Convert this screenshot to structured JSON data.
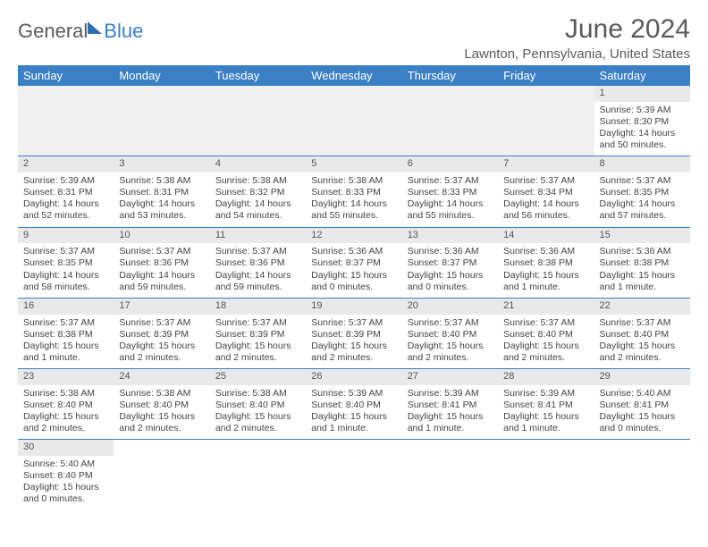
{
  "brand": {
    "part1": "General",
    "part2": "Blue"
  },
  "title": "June 2024",
  "location": "Lawnton, Pennsylvania, United States",
  "colors": {
    "header_bg": "#3b7fc4",
    "header_text": "#ffffff",
    "daynum_bg": "#e9e9e9",
    "row_divider": "#3b7fc4",
    "text": "#444444",
    "title_text": "#5a5a5a"
  },
  "weekdays": [
    "Sunday",
    "Monday",
    "Tuesday",
    "Wednesday",
    "Thursday",
    "Friday",
    "Saturday"
  ],
  "weeks": [
    [
      null,
      null,
      null,
      null,
      null,
      null,
      {
        "d": "1",
        "sr": "5:39 AM",
        "ss": "8:30 PM",
        "dl": "14 hours and 50 minutes."
      }
    ],
    [
      {
        "d": "2",
        "sr": "5:39 AM",
        "ss": "8:31 PM",
        "dl": "14 hours and 52 minutes."
      },
      {
        "d": "3",
        "sr": "5:38 AM",
        "ss": "8:31 PM",
        "dl": "14 hours and 53 minutes."
      },
      {
        "d": "4",
        "sr": "5:38 AM",
        "ss": "8:32 PM",
        "dl": "14 hours and 54 minutes."
      },
      {
        "d": "5",
        "sr": "5:38 AM",
        "ss": "8:33 PM",
        "dl": "14 hours and 55 minutes."
      },
      {
        "d": "6",
        "sr": "5:37 AM",
        "ss": "8:33 PM",
        "dl": "14 hours and 55 minutes."
      },
      {
        "d": "7",
        "sr": "5:37 AM",
        "ss": "8:34 PM",
        "dl": "14 hours and 56 minutes."
      },
      {
        "d": "8",
        "sr": "5:37 AM",
        "ss": "8:35 PM",
        "dl": "14 hours and 57 minutes."
      }
    ],
    [
      {
        "d": "9",
        "sr": "5:37 AM",
        "ss": "8:35 PM",
        "dl": "14 hours and 58 minutes."
      },
      {
        "d": "10",
        "sr": "5:37 AM",
        "ss": "8:36 PM",
        "dl": "14 hours and 59 minutes."
      },
      {
        "d": "11",
        "sr": "5:37 AM",
        "ss": "8:36 PM",
        "dl": "14 hours and 59 minutes."
      },
      {
        "d": "12",
        "sr": "5:36 AM",
        "ss": "8:37 PM",
        "dl": "15 hours and 0 minutes."
      },
      {
        "d": "13",
        "sr": "5:36 AM",
        "ss": "8:37 PM",
        "dl": "15 hours and 0 minutes."
      },
      {
        "d": "14",
        "sr": "5:36 AM",
        "ss": "8:38 PM",
        "dl": "15 hours and 1 minute."
      },
      {
        "d": "15",
        "sr": "5:36 AM",
        "ss": "8:38 PM",
        "dl": "15 hours and 1 minute."
      }
    ],
    [
      {
        "d": "16",
        "sr": "5:37 AM",
        "ss": "8:38 PM",
        "dl": "15 hours and 1 minute."
      },
      {
        "d": "17",
        "sr": "5:37 AM",
        "ss": "8:39 PM",
        "dl": "15 hours and 2 minutes."
      },
      {
        "d": "18",
        "sr": "5:37 AM",
        "ss": "8:39 PM",
        "dl": "15 hours and 2 minutes."
      },
      {
        "d": "19",
        "sr": "5:37 AM",
        "ss": "8:39 PM",
        "dl": "15 hours and 2 minutes."
      },
      {
        "d": "20",
        "sr": "5:37 AM",
        "ss": "8:40 PM",
        "dl": "15 hours and 2 minutes."
      },
      {
        "d": "21",
        "sr": "5:37 AM",
        "ss": "8:40 PM",
        "dl": "15 hours and 2 minutes."
      },
      {
        "d": "22",
        "sr": "5:37 AM",
        "ss": "8:40 PM",
        "dl": "15 hours and 2 minutes."
      }
    ],
    [
      {
        "d": "23",
        "sr": "5:38 AM",
        "ss": "8:40 PM",
        "dl": "15 hours and 2 minutes."
      },
      {
        "d": "24",
        "sr": "5:38 AM",
        "ss": "8:40 PM",
        "dl": "15 hours and 2 minutes."
      },
      {
        "d": "25",
        "sr": "5:38 AM",
        "ss": "8:40 PM",
        "dl": "15 hours and 2 minutes."
      },
      {
        "d": "26",
        "sr": "5:39 AM",
        "ss": "8:40 PM",
        "dl": "15 hours and 1 minute."
      },
      {
        "d": "27",
        "sr": "5:39 AM",
        "ss": "8:41 PM",
        "dl": "15 hours and 1 minute."
      },
      {
        "d": "28",
        "sr": "5:39 AM",
        "ss": "8:41 PM",
        "dl": "15 hours and 1 minute."
      },
      {
        "d": "29",
        "sr": "5:40 AM",
        "ss": "8:41 PM",
        "dl": "15 hours and 0 minutes."
      }
    ],
    [
      {
        "d": "30",
        "sr": "5:40 AM",
        "ss": "8:40 PM",
        "dl": "15 hours and 0 minutes."
      },
      null,
      null,
      null,
      null,
      null,
      null
    ]
  ],
  "labels": {
    "sunrise": "Sunrise: ",
    "sunset": "Sunset: ",
    "daylight": "Daylight: "
  }
}
